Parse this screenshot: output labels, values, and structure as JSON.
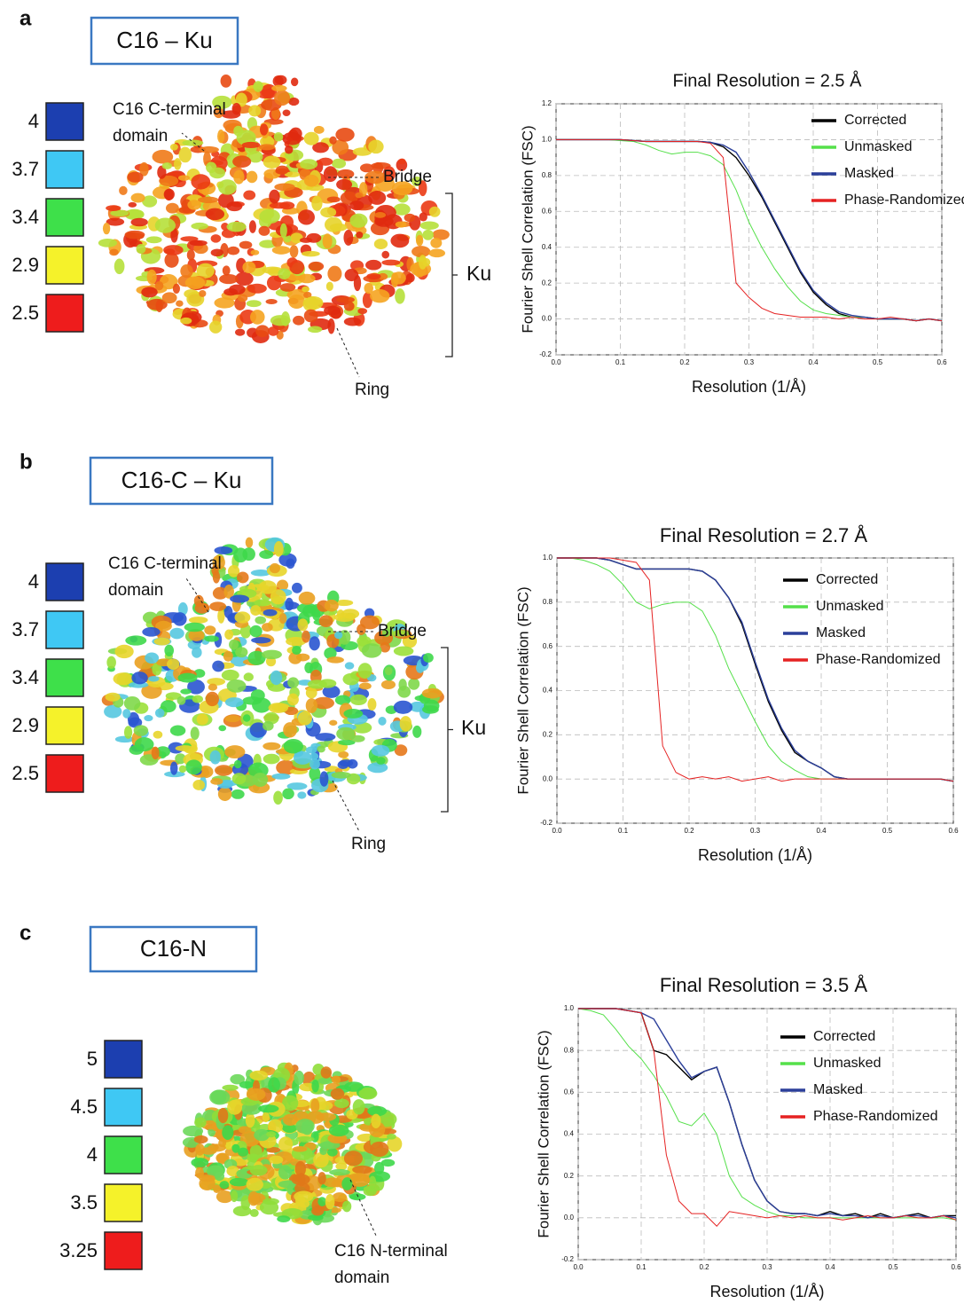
{
  "panels": [
    {
      "letter": "a",
      "title": "C16 – Ku",
      "legend": [
        {
          "label": "4",
          "color": "#1c3fb0"
        },
        {
          "label": "3.7",
          "color": "#3fc8f4"
        },
        {
          "label": "3.4",
          "color": "#3ee04a"
        },
        {
          "label": "2.9",
          "color": "#f5f22a"
        },
        {
          "label": "2.5",
          "color": "#ee1c1c"
        }
      ],
      "annotations": {
        "domain": [
          "C16 C-terminal",
          "domain"
        ],
        "bridge": "Bridge",
        "ku": "Ku",
        "ring": "Ring"
      }
    },
    {
      "letter": "b",
      "title": "C16-C – Ku",
      "legend": [
        {
          "label": "4",
          "color": "#1c3fb0"
        },
        {
          "label": "3.7",
          "color": "#3fc8f4"
        },
        {
          "label": "3.4",
          "color": "#3ee04a"
        },
        {
          "label": "2.9",
          "color": "#f5f22a"
        },
        {
          "label": "2.5",
          "color": "#ee1c1c"
        }
      ],
      "annotations": {
        "domain": [
          "C16 C-terminal",
          "domain"
        ],
        "bridge": "Bridge",
        "ku": "Ku",
        "ring": "Ring"
      }
    },
    {
      "letter": "c",
      "title": "C16-N",
      "legend": [
        {
          "label": "5",
          "color": "#1c3fb0"
        },
        {
          "label": "4.5",
          "color": "#3fc8f4"
        },
        {
          "label": "4",
          "color": "#3ee04a"
        },
        {
          "label": "3.5",
          "color": "#f5f22a"
        },
        {
          "label": "3.25",
          "color": "#ee1c1c"
        }
      ],
      "annotations": {
        "domain": [
          "C16 N-terminal",
          "domain"
        ]
      }
    }
  ],
  "chart_data": [
    {
      "type": "line",
      "title": "Final Resolution = 2.5 Å",
      "xlabel": "Resolution (1/Å)",
      "ylabel": "Fourier Shell Correlation (FSC)",
      "x": [
        0,
        0.02,
        0.04,
        0.06,
        0.08,
        0.1,
        0.12,
        0.14,
        0.16,
        0.18,
        0.2,
        0.22,
        0.24,
        0.26,
        0.28,
        0.3,
        0.32,
        0.34,
        0.36,
        0.38,
        0.4,
        0.42,
        0.44,
        0.46,
        0.48,
        0.5,
        0.52,
        0.54,
        0.56,
        0.58,
        0.6
      ],
      "xlim": [
        0,
        0.6
      ],
      "ylim": [
        -0.2,
        1.2
      ],
      "xticks": [
        {
          "value": 0,
          "label": "0.0"
        },
        0.1,
        0.2,
        0.3,
        0.4,
        0.5,
        0.6
      ],
      "yticks": [
        {
          "value": -0.2,
          "label": "-0.2"
        },
        {
          "value": 0,
          "label": "0.0"
        },
        0.2,
        0.4,
        0.6,
        0.8,
        {
          "value": 1,
          "label": "1.0"
        },
        1.2
      ],
      "grid": true,
      "series": [
        {
          "name": "Corrected",
          "color": "#000000",
          "values": [
            1,
            1,
            1,
            1,
            1,
            1,
            0.995,
            0.99,
            0.99,
            0.99,
            0.99,
            0.99,
            0.985,
            0.96,
            0.9,
            0.8,
            0.68,
            0.54,
            0.4,
            0.26,
            0.15,
            0.08,
            0.03,
            0.01,
            0.01,
            0,
            0,
            0,
            -0.01,
            0,
            -0.01
          ]
        },
        {
          "name": "Unmasked",
          "color": "#55e04a",
          "values": [
            1,
            1,
            1,
            1,
            1,
            0.995,
            0.99,
            0.97,
            0.94,
            0.92,
            0.93,
            0.93,
            0.91,
            0.86,
            0.72,
            0.54,
            0.4,
            0.28,
            0.18,
            0.1,
            0.05,
            0.03,
            0.02,
            0.01,
            0.01,
            0,
            0,
            0,
            -0.01,
            0,
            -0.01
          ]
        },
        {
          "name": "Masked",
          "color": "#2b3f9a",
          "values": [
            1,
            1,
            1,
            1,
            1,
            1,
            0.995,
            0.99,
            0.99,
            0.99,
            0.99,
            0.99,
            0.985,
            0.97,
            0.93,
            0.82,
            0.69,
            0.55,
            0.41,
            0.27,
            0.16,
            0.09,
            0.04,
            0.02,
            0.01,
            0,
            0,
            0,
            -0.01,
            0,
            -0.01
          ]
        },
        {
          "name": "Phase-Randomized",
          "color": "#e52222",
          "values": [
            1,
            1,
            1,
            1,
            1,
            1,
            0.995,
            0.99,
            0.99,
            0.99,
            0.99,
            0.99,
            0.98,
            0.9,
            0.2,
            0.12,
            0.06,
            0.03,
            0.02,
            0.01,
            0.01,
            0.01,
            0,
            0.01,
            0,
            0,
            0.01,
            0,
            -0.01,
            0,
            -0.01
          ]
        }
      ]
    },
    {
      "type": "line",
      "title": "Final Resolution = 2.7 Å",
      "xlabel": "Resolution (1/Å)",
      "ylabel": "Fourier Shell Correlation (FSC)",
      "x": [
        0,
        0.02,
        0.04,
        0.06,
        0.08,
        0.1,
        0.12,
        0.14,
        0.16,
        0.18,
        0.2,
        0.22,
        0.24,
        0.26,
        0.28,
        0.3,
        0.32,
        0.34,
        0.36,
        0.38,
        0.4,
        0.42,
        0.44,
        0.46,
        0.48,
        0.5,
        0.52,
        0.54,
        0.56,
        0.58,
        0.6
      ],
      "xlim": [
        0,
        0.6
      ],
      "ylim": [
        -0.2,
        1
      ],
      "xticks": [
        {
          "value": 0,
          "label": "0.0"
        },
        0.1,
        0.2,
        0.3,
        0.4,
        0.5,
        0.6
      ],
      "yticks": [
        {
          "value": -0.2,
          "label": "-0.2"
        },
        {
          "value": 0,
          "label": "0.0"
        },
        0.2,
        0.4,
        0.6,
        0.8,
        {
          "value": 1,
          "label": "1.0"
        }
      ],
      "grid": true,
      "series": [
        {
          "name": "Corrected",
          "color": "#000000",
          "values": [
            1,
            1,
            1,
            1,
            0.99,
            0.97,
            0.95,
            0.95,
            0.95,
            0.95,
            0.95,
            0.94,
            0.9,
            0.82,
            0.7,
            0.52,
            0.35,
            0.22,
            0.12,
            0.08,
            0.05,
            0.01,
            0,
            0,
            0,
            0,
            0,
            0,
            0,
            0,
            -0.01
          ]
        },
        {
          "name": "Unmasked",
          "color": "#55e04a",
          "values": [
            1,
            1,
            0.99,
            0.97,
            0.94,
            0.88,
            0.8,
            0.77,
            0.79,
            0.8,
            0.8,
            0.76,
            0.65,
            0.5,
            0.38,
            0.26,
            0.15,
            0.08,
            0.04,
            0.01,
            0,
            0,
            0,
            0,
            0,
            0,
            0,
            0,
            0,
            0,
            -0.01
          ]
        },
        {
          "name": "Masked",
          "color": "#2b3f9a",
          "values": [
            1,
            1,
            1,
            1,
            0.99,
            0.97,
            0.95,
            0.95,
            0.95,
            0.95,
            0.95,
            0.94,
            0.9,
            0.82,
            0.71,
            0.53,
            0.36,
            0.23,
            0.13,
            0.08,
            0.05,
            0.01,
            0,
            0,
            0,
            0,
            0,
            0,
            0,
            0,
            -0.01
          ]
        },
        {
          "name": "Phase-Randomized",
          "color": "#e52222",
          "values": [
            1,
            1,
            1,
            1,
            1,
            0.99,
            0.98,
            0.9,
            0.15,
            0.03,
            0,
            0.01,
            0,
            0.01,
            -0.01,
            0,
            0.01,
            -0.01,
            0,
            0,
            0,
            0,
            0,
            0,
            0,
            0,
            0,
            0,
            0,
            0,
            -0.01
          ]
        }
      ]
    },
    {
      "type": "line",
      "title": "Final Resolution = 3.5 Å",
      "xlabel": "Resolution (1/Å)",
      "ylabel": "Fourier Shell Correlation (FSC)",
      "x": [
        0,
        0.02,
        0.04,
        0.06,
        0.08,
        0.1,
        0.12,
        0.14,
        0.16,
        0.18,
        0.2,
        0.22,
        0.24,
        0.26,
        0.28,
        0.3,
        0.32,
        0.34,
        0.36,
        0.38,
        0.4,
        0.42,
        0.44,
        0.46,
        0.48,
        0.5,
        0.52,
        0.54,
        0.56,
        0.58,
        0.6
      ],
      "xlim": [
        0,
        0.6
      ],
      "ylim": [
        -0.2,
        1
      ],
      "xticks": [
        {
          "value": 0,
          "label": "0.0"
        },
        0.1,
        0.2,
        0.3,
        0.4,
        0.5,
        0.6
      ],
      "yticks": [
        {
          "value": -0.2,
          "label": "-0.2"
        },
        {
          "value": 0,
          "label": "0.0"
        },
        0.2,
        0.4,
        0.6,
        0.8,
        {
          "value": 1,
          "label": "1.0"
        }
      ],
      "grid": true,
      "series": [
        {
          "name": "Corrected",
          "color": "#000000",
          "values": [
            1,
            1,
            1,
            1,
            0.99,
            0.98,
            0.8,
            0.78,
            0.72,
            0.66,
            0.7,
            0.72,
            0.55,
            0.35,
            0.18,
            0.08,
            0.03,
            0.02,
            0.02,
            0.01,
            0.03,
            0.01,
            0.02,
            0,
            0.02,
            0,
            0.01,
            0.02,
            0,
            0.01,
            0.01
          ]
        },
        {
          "name": "Unmasked",
          "color": "#55e04a",
          "values": [
            1,
            0.99,
            0.97,
            0.9,
            0.82,
            0.76,
            0.68,
            0.58,
            0.46,
            0.44,
            0.5,
            0.4,
            0.2,
            0.1,
            0.06,
            0.03,
            0.01,
            0.01,
            0,
            0,
            0,
            0,
            0,
            0,
            0,
            0,
            0,
            0,
            0,
            0,
            -0.01
          ]
        },
        {
          "name": "Masked",
          "color": "#2b3f9a",
          "values": [
            1,
            1,
            1,
            1,
            0.99,
            0.98,
            0.95,
            0.85,
            0.75,
            0.67,
            0.7,
            0.72,
            0.55,
            0.35,
            0.18,
            0.08,
            0.03,
            0.02,
            0.02,
            0.01,
            0.02,
            0.01,
            0.01,
            0,
            0.01,
            0,
            0.01,
            0.01,
            0,
            0.01,
            0
          ]
        },
        {
          "name": "Phase-Randomized",
          "color": "#e52222",
          "values": [
            1,
            1,
            1,
            1,
            0.99,
            0.98,
            0.8,
            0.3,
            0.08,
            0.02,
            0.02,
            -0.04,
            0.03,
            0.02,
            0.01,
            0,
            0.01,
            0,
            0.01,
            0,
            0,
            -0.01,
            0,
            0.01,
            0,
            0,
            0.01,
            0,
            0,
            0.01,
            -0.01
          ]
        }
      ]
    }
  ]
}
